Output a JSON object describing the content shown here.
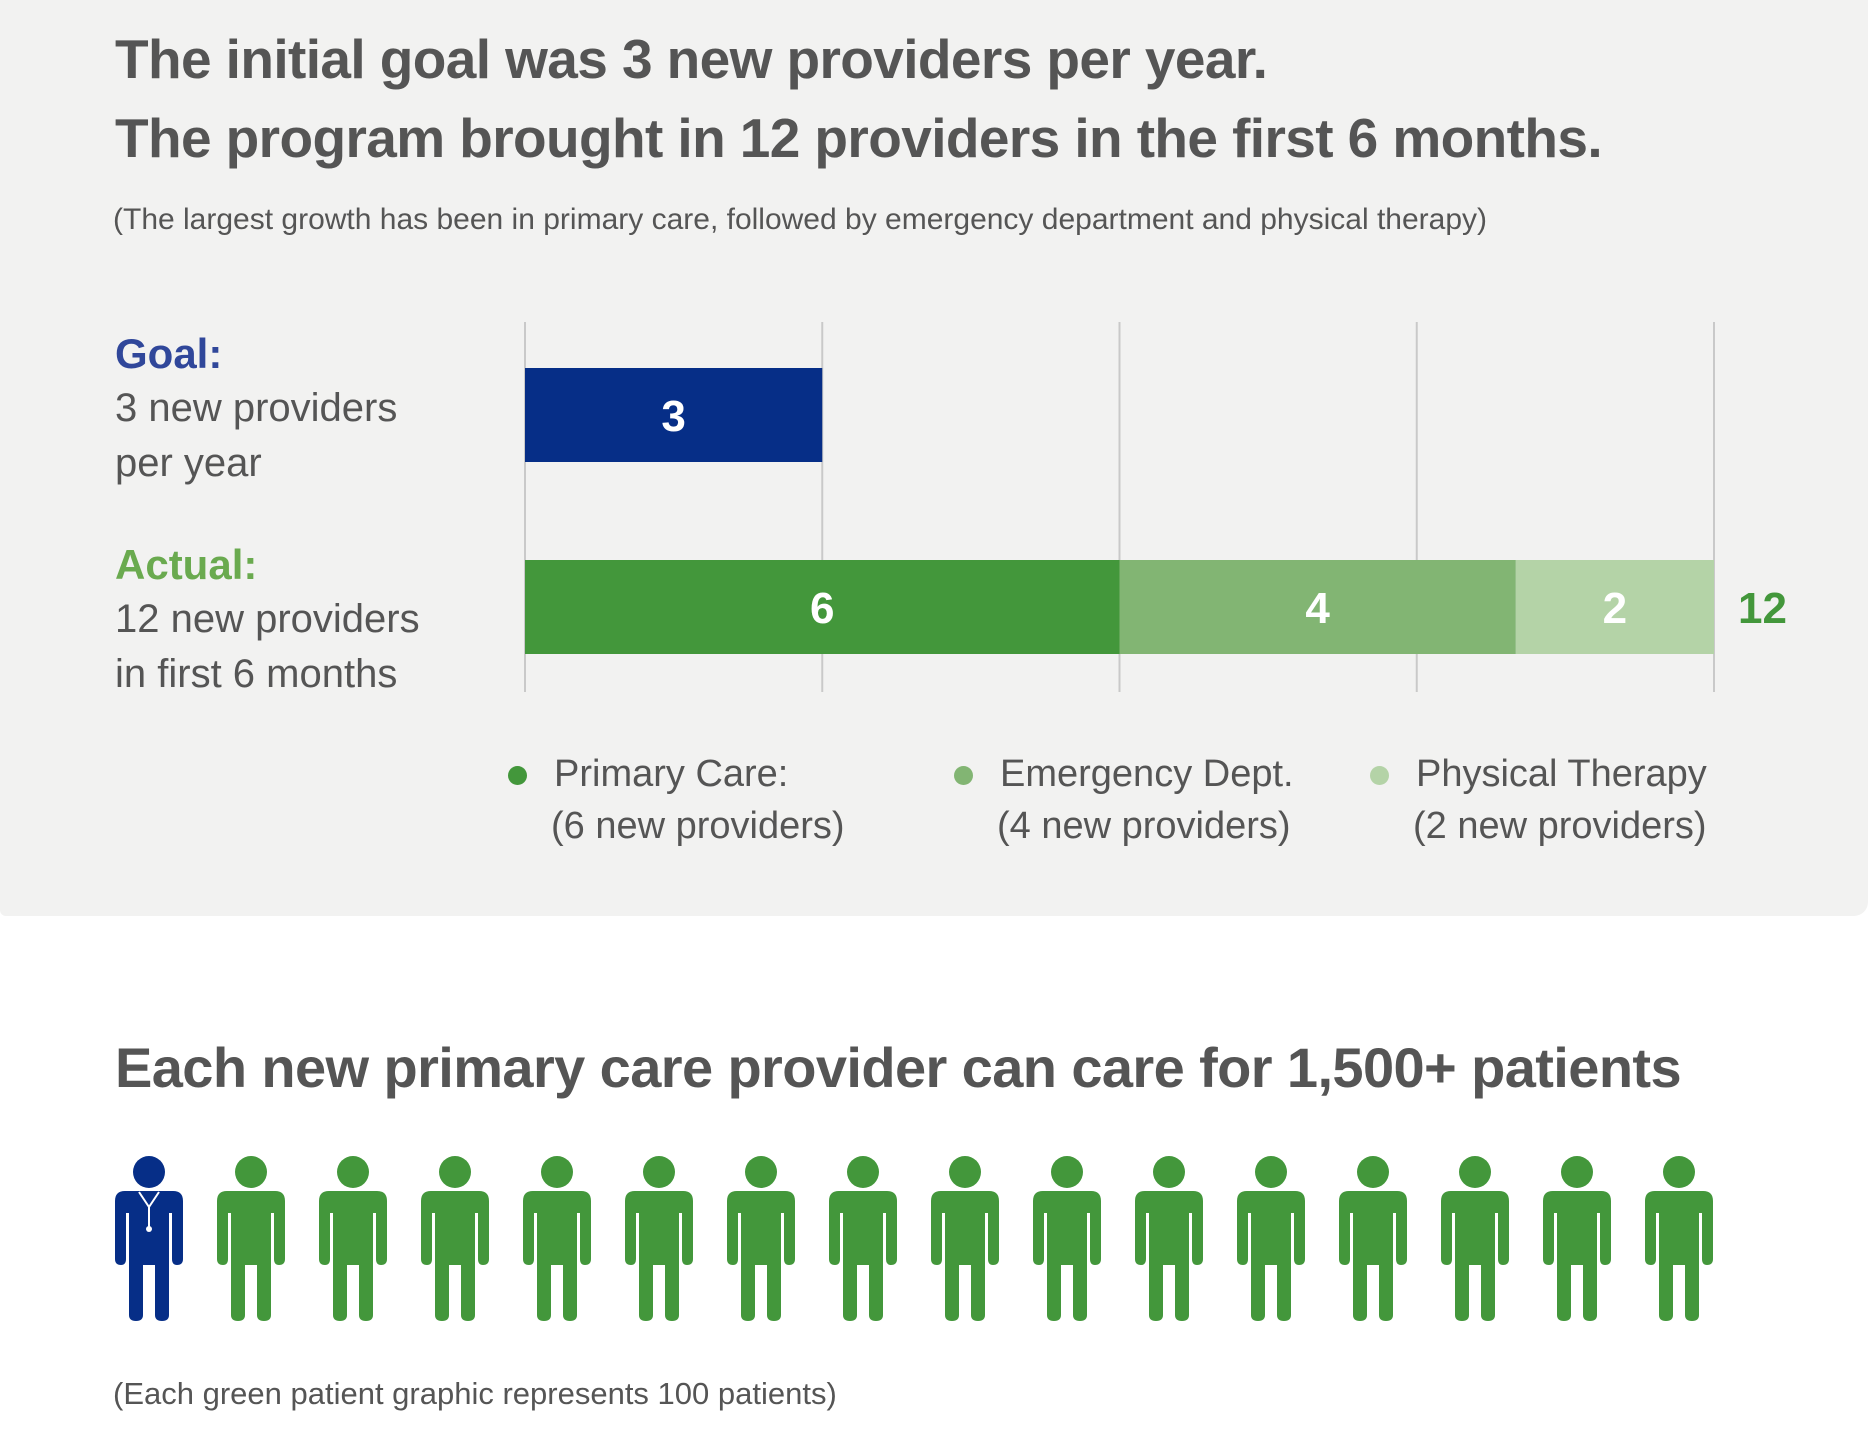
{
  "headline_1": "The initial goal was 3 new providers per year.",
  "headline_2": "The program brought in 12 providers in the first 6 months.",
  "subtitle": "(The largest growth has been in primary care, followed by emergency department and physical therapy)",
  "goal": {
    "lead": "Goal:",
    "line1": "3 new providers",
    "line2": "per year"
  },
  "actual": {
    "lead": "Actual:",
    "line1": "12 new providers",
    "line2": "in first 6 months"
  },
  "legend": [
    {
      "label": "Primary Care:",
      "sub": "(6 new providers)",
      "color": "#43973b"
    },
    {
      "label": "Emergency Dept.",
      "sub": "(4 new providers)",
      "color": "#82b573"
    },
    {
      "label": "Physical Therapy",
      "sub": "(2 new providers)",
      "color": "#b4d3a7"
    }
  ],
  "chart_data": {
    "type": "bar",
    "orientation": "horizontal",
    "stacked": true,
    "xlim": [
      0,
      12
    ],
    "x_gridlines": [
      0,
      3,
      6,
      9,
      12
    ],
    "grid": true,
    "categories": [
      "Goal",
      "Actual"
    ],
    "series": [
      {
        "name": "Goal",
        "values": [
          3,
          null
        ],
        "color": "#062e87"
      },
      {
        "name": "Primary Care",
        "values": [
          null,
          6
        ],
        "color": "#43973b"
      },
      {
        "name": "Emergency Dept.",
        "values": [
          null,
          4
        ],
        "color": "#82b573"
      },
      {
        "name": "Physical Therapy",
        "values": [
          null,
          2
        ],
        "color": "#b4d3a7"
      }
    ],
    "totals": [
      {
        "category": "Actual",
        "value": 12,
        "label": "12",
        "color": "#43973b"
      }
    ],
    "legend_position": "bottom"
  },
  "section_2": {
    "headline": "Each new primary care provider can care for 1,500+ patients",
    "provider_icon": "doctor-icon",
    "patient_icon": "patient-icon",
    "provider_count": 1,
    "patient_count": 15,
    "provider_color": "#062e87",
    "patient_color": "#43973b",
    "footnote": "(Each green patient graphic represents 100 patients)"
  }
}
